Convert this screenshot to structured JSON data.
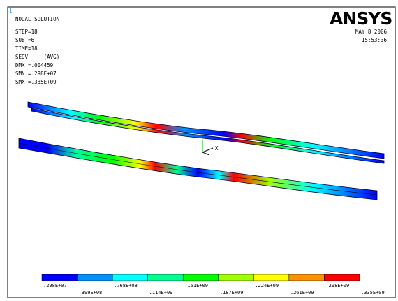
{
  "window_number": "1",
  "header": {
    "title": "NODAL SOLUTION",
    "info": [
      "STEP=18",
      "SUB =6",
      "TIME=18",
      "SEQV     (AVG)",
      "DMX =.004459",
      "SMN =.298E+07",
      "SMX =.335E+09"
    ],
    "logo": "ANSYS",
    "date": "MAY  8 2006",
    "time": "15:53:36"
  },
  "axis_label": "X",
  "legend": {
    "colors": [
      "#0000ff",
      "#0090ff",
      "#00ffff",
      "#00ff90",
      "#00ff00",
      "#a0ff00",
      "#ffff00",
      "#ff9000",
      "#ff0000"
    ],
    "labels": [
      ".298E+07",
      ".399E+08",
      ".768E+08",
      ".114E+09",
      ".151E+09",
      ".187E+09",
      ".224E+09",
      ".261E+09",
      ".298E+09",
      ".335E+09"
    ]
  }
}
